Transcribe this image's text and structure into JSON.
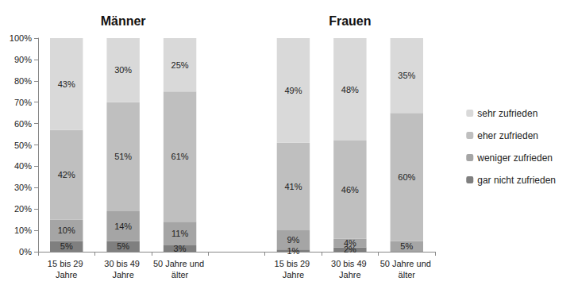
{
  "chart_data": {
    "type": "bar",
    "stacked": true,
    "data_labels": true,
    "grid": false,
    "legend": "right",
    "annotations": [
      "Männer",
      "Frauen"
    ],
    "categories": [
      "15 bis 29 Jahre",
      "30 bis 49 Jahre",
      "50 Jahre und älter",
      null,
      "15 bis 29 Jahre",
      "30 bis 49 Jahre",
      "50 Jahre und älter"
    ],
    "ylim": [
      0,
      100
    ],
    "yticks": [
      {
        "value": 0,
        "label": "0%"
      },
      {
        "value": 10,
        "label": "10%"
      },
      {
        "value": 20,
        "label": "20%"
      },
      {
        "value": 30,
        "label": "30%"
      },
      {
        "value": 40,
        "label": "40%"
      },
      {
        "value": 50,
        "label": "50%"
      },
      {
        "value": 60,
        "label": "60%"
      },
      {
        "value": 70,
        "label": "70%"
      },
      {
        "value": 80,
        "label": "80%"
      },
      {
        "value": 90,
        "label": "90%"
      },
      {
        "value": 100,
        "label": "100%"
      }
    ],
    "series": [
      {
        "name": "gar nicht zufrieden",
        "color": "#7f7f7f",
        "values": [
          5,
          5,
          3,
          null,
          1,
          2,
          null
        ],
        "value_labels": [
          "5%",
          "5%",
          "3%",
          null,
          "1%",
          "2%",
          null
        ]
      },
      {
        "name": "weniger zufrieden",
        "color": "#a5a5a5",
        "values": [
          10,
          14,
          11,
          null,
          9,
          4,
          5
        ],
        "value_labels": [
          "10%",
          "14%",
          "11%",
          null,
          "9%",
          "4%",
          "5%"
        ]
      },
      {
        "name": "eher zufrieden",
        "color": "#bfbfbf",
        "values": [
          42,
          51,
          61,
          null,
          41,
          46,
          60
        ],
        "value_labels": [
          "42%",
          "51%",
          "61%",
          null,
          "41%",
          "46%",
          "60%"
        ]
      },
      {
        "name": "sehr zufrieden",
        "color": "#d9d9d9",
        "values": [
          43,
          30,
          25,
          null,
          49,
          48,
          35
        ],
        "value_labels": [
          "43%",
          "30%",
          "25%",
          null,
          "49%",
          "48%",
          "35%"
        ]
      }
    ]
  }
}
